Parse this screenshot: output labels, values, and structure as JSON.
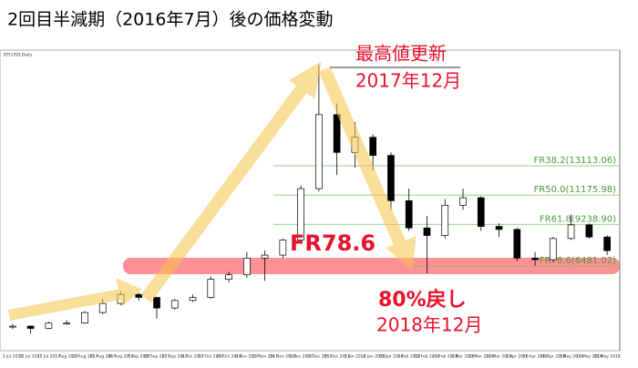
{
  "chart_data": {
    "type": "candlestick",
    "title": "2回目半減期（2016年7月）後の価格変動",
    "symbol": "BTCUSD,Daily",
    "categories": [
      "3 Jul 2017",
      "12 Jul 2017",
      "21 Jul 2017",
      "1 Aug 2017",
      "10 Aug 2017",
      "21 Aug 2017",
      "30 Aug 2017",
      "7 Sep 2017",
      "18 Sep 2017",
      "27 Sep 2017",
      "6 Oct 2017",
      "17 Oct 2017",
      "26 Oct 2017",
      "6 Nov 2017",
      "15 Nov 2017",
      "24 Nov 2017",
      "5 Dec 2017",
      "14 Dec 2017",
      "25 Dec 2017",
      "3 Jan 2018",
      "12 Jan 2018",
      "23 Jan 2018",
      "1 Feb 2018",
      "12 Feb 2018",
      "21 Feb 2018",
      "2 Mar 2018",
      "13 Mar 2018",
      "22 Mar 2018",
      "2 Apr 2018",
      "11 Apr 2018",
      "20 Apr 2018",
      "2 May 2018",
      "11 May 2018",
      "22 May 2018"
    ],
    "open": [
      2450,
      2500,
      2350,
      2700,
      2700,
      3400,
      4000,
      4600,
      4400,
      3700,
      4200,
      4400,
      5600,
      5900,
      7000,
      7200,
      8200,
      11600,
      16500,
      14000,
      15000,
      13800,
      10800,
      9000,
      8500,
      10500,
      11000,
      9100,
      8900,
      7000,
      6900,
      8300,
      9200,
      8400
    ],
    "high": [
      2650,
      2550,
      2800,
      2900,
      3500,
      4300,
      4800,
      4700,
      4450,
      4300,
      4600,
      5800,
      6100,
      7400,
      7500,
      8300,
      11800,
      19800,
      17200,
      16000,
      15200,
      14000,
      11600,
      9800,
      10900,
      11600,
      11100,
      9300,
      9000,
      7400,
      8400,
      9900,
      9300,
      8500
    ],
    "low": [
      2300,
      2000,
      2300,
      2600,
      2650,
      3300,
      3900,
      4200,
      3000,
      3600,
      4100,
      4300,
      5400,
      5700,
      5500,
      7000,
      8100,
      11400,
      12500,
      13000,
      12800,
      10200,
      8800,
      6000,
      8300,
      10200,
      8800,
      8400,
      6800,
      6500,
      6800,
      8200,
      8300,
      7200
    ],
    "close": [
      2500,
      2350,
      2700,
      2700,
      3400,
      4000,
      4600,
      4400,
      3700,
      4200,
      4400,
      5600,
      5900,
      7000,
      7200,
      8200,
      11600,
      16500,
      14000,
      15000,
      13800,
      10800,
      9000,
      8500,
      10500,
      11000,
      9100,
      8900,
      7000,
      6900,
      8300,
      9200,
      8400,
      7500
    ],
    "ylim": [
      875,
      20770
    ],
    "fib_levels": [
      {
        "label": "FR38.2(13113.06)",
        "value": 13113.06
      },
      {
        "label": "FR50.0(11175.98)",
        "value": 11175.98
      },
      {
        "label": "FR61.8(9238.90)",
        "value": 9238.9
      },
      {
        "label": "FR78.6(6481.02)",
        "value": 6481.02
      }
    ],
    "fib_color": "#7fbf5f",
    "band_color": "rgba(255,70,80,0.6)",
    "annotations": {
      "peak": "最高値更新",
      "peak_date": "2017年12月",
      "level": "FR78.6",
      "retrace": "80%戻し",
      "retrace_date": "2018年12月"
    }
  }
}
